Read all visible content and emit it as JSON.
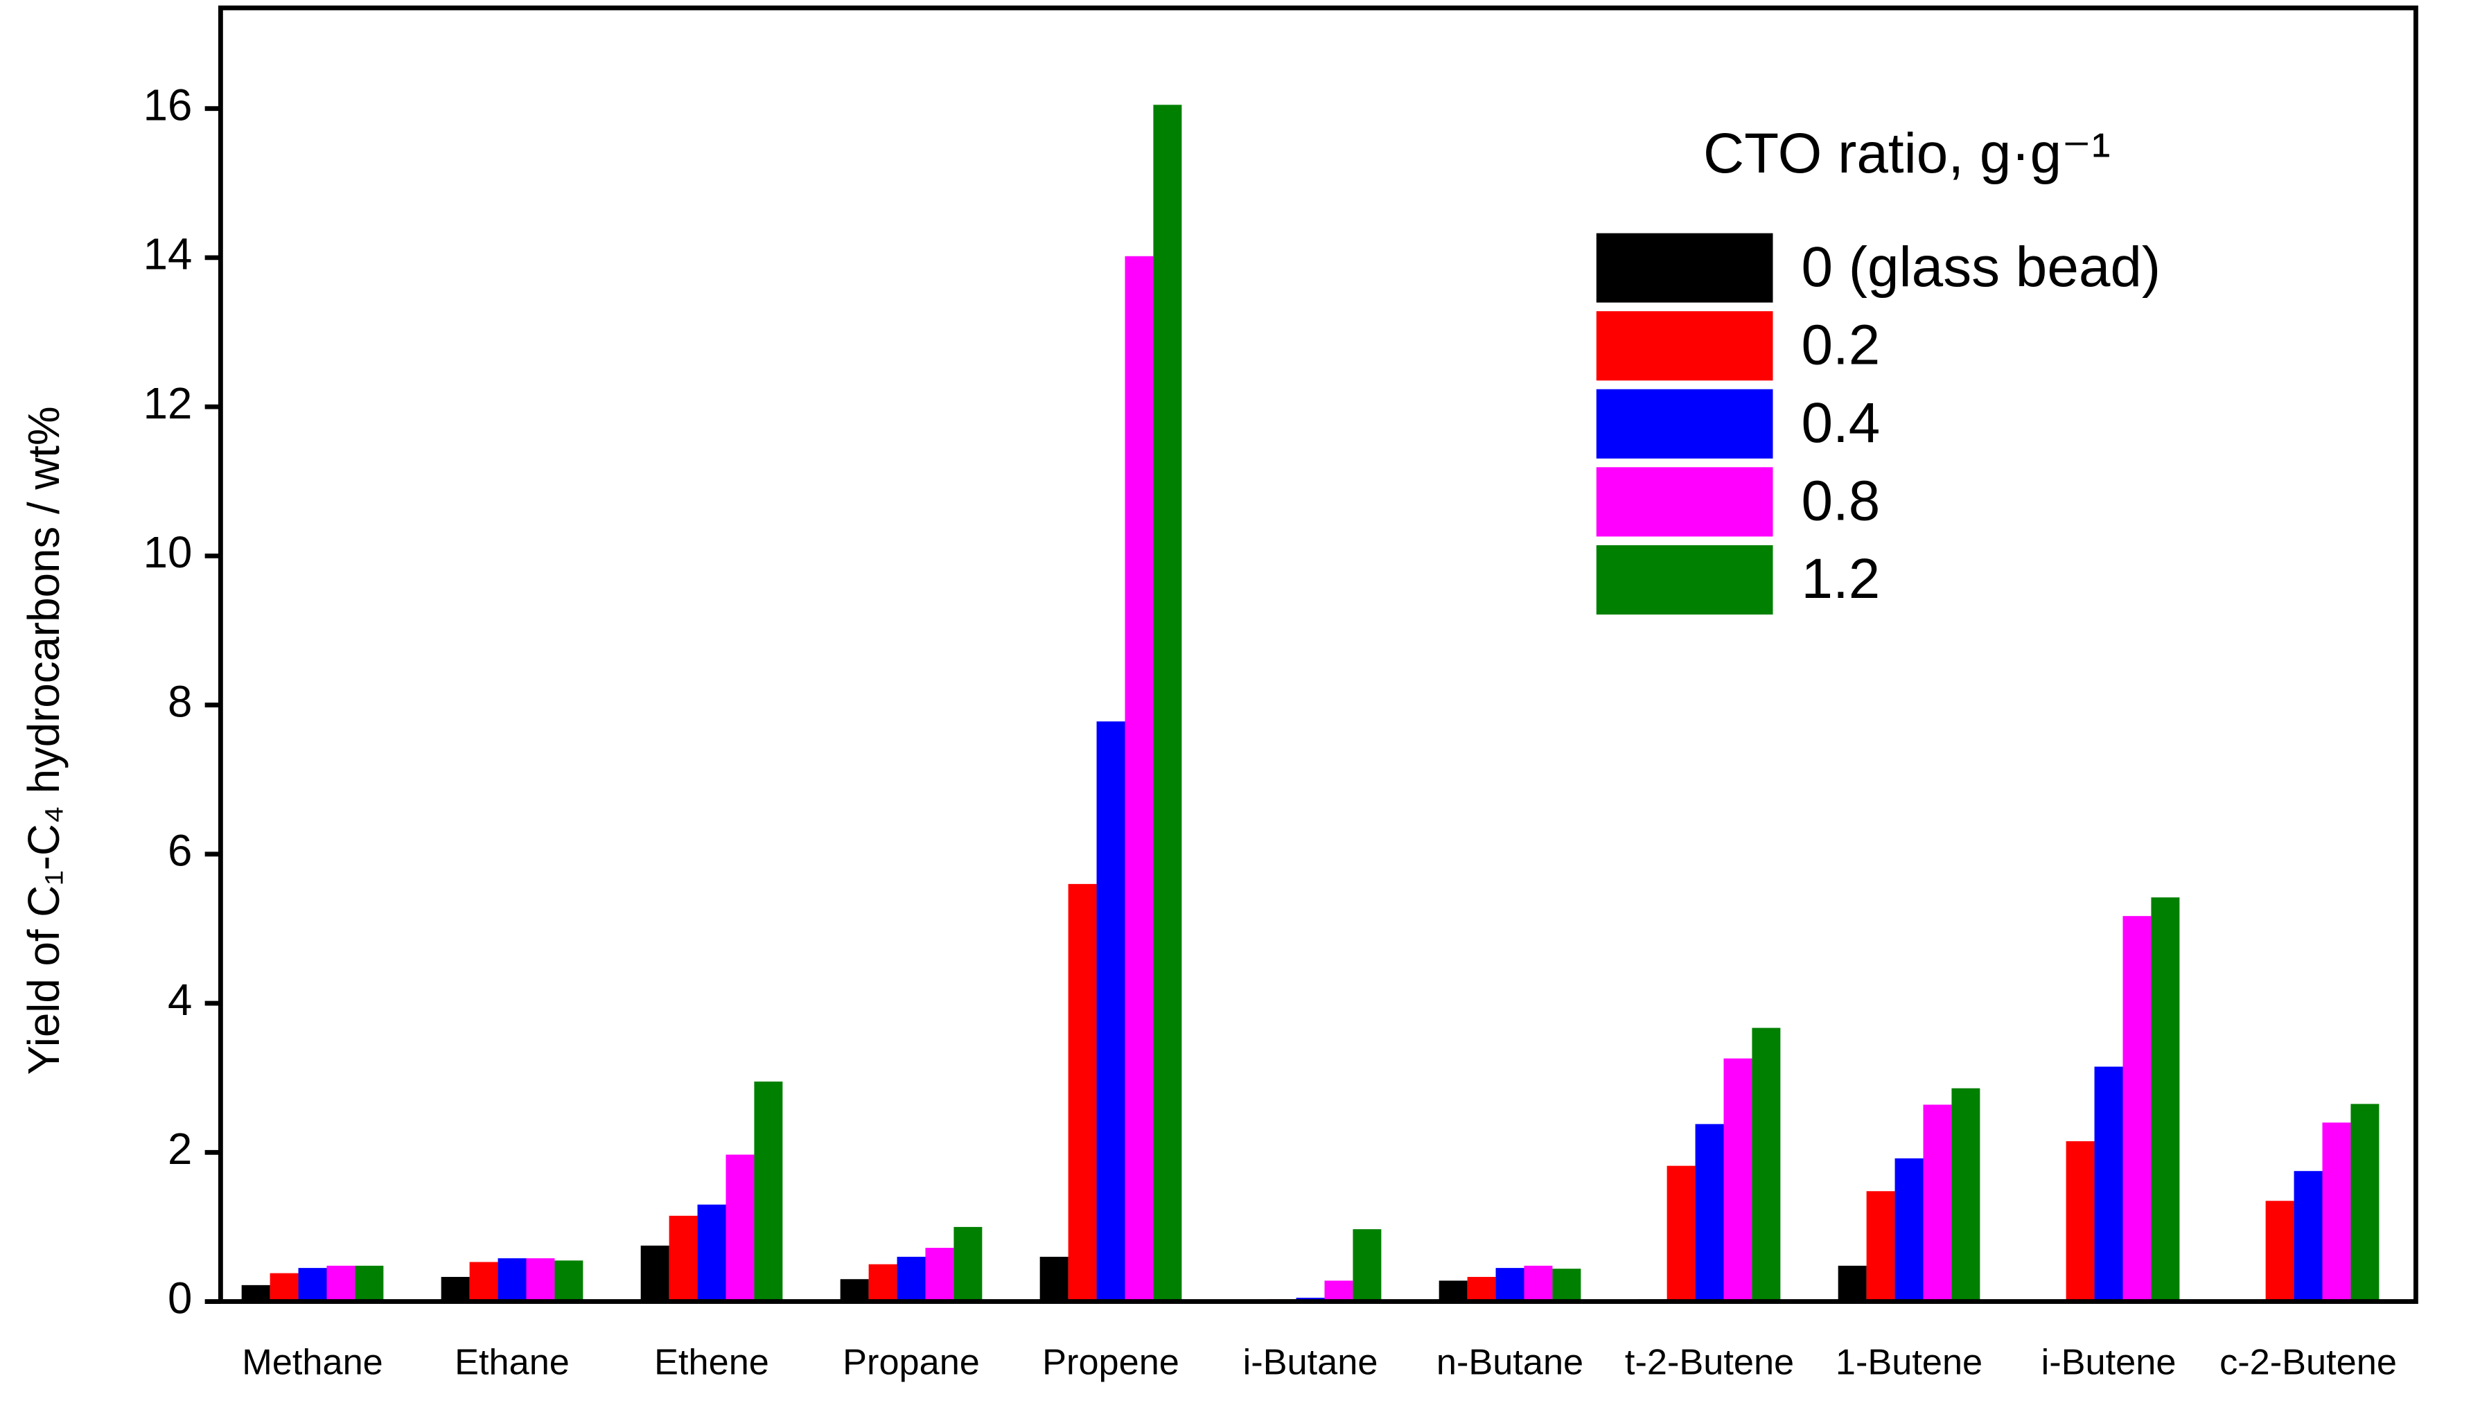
{
  "chart_data": {
    "type": "bar",
    "y_label": "Yield of C₁-C₄ hydrocarbons / wt%",
    "legend_title": "CTO ratio, g·g⁻¹",
    "legend_position": "upper right",
    "categories": [
      "Methane",
      "Ethane",
      "Ethene",
      "Propane",
      "Propene",
      "i-Butane",
      "n-Butane",
      "t-2-Butene",
      "1-Butene",
      "i-Butene",
      "c-2-Butene"
    ],
    "series": [
      {
        "name": "0 (glass bead)",
        "color": "#000000",
        "values": [
          0.22,
          0.33,
          0.75,
          0.3,
          0.6,
          0.0,
          0.28,
          0.03,
          0.48,
          0.0,
          0.02
        ]
      },
      {
        "name": "0.2",
        "color": "#ff0000",
        "values": [
          0.38,
          0.53,
          1.15,
          0.5,
          5.6,
          0.03,
          0.33,
          1.82,
          1.48,
          2.15,
          1.35
        ]
      },
      {
        "name": "0.4",
        "color": "#0000ff",
        "values": [
          0.45,
          0.58,
          1.3,
          0.6,
          7.78,
          0.05,
          0.45,
          2.38,
          1.92,
          3.15,
          1.75
        ]
      },
      {
        "name": "0.8",
        "color": "#ff00ff",
        "values": [
          0.48,
          0.58,
          1.97,
          0.72,
          14.02,
          0.28,
          0.48,
          3.26,
          2.64,
          5.17,
          2.4
        ]
      },
      {
        "name": "1.2",
        "color": "#008000",
        "values": [
          0.48,
          0.55,
          2.95,
          1.0,
          16.05,
          0.97,
          0.44,
          3.67,
          2.86,
          5.42,
          2.65
        ]
      }
    ],
    "ylim": [
      0,
      17.35
    ],
    "yticks": [
      0,
      2,
      4,
      6,
      8,
      10,
      12,
      14,
      16
    ],
    "grid": false
  }
}
